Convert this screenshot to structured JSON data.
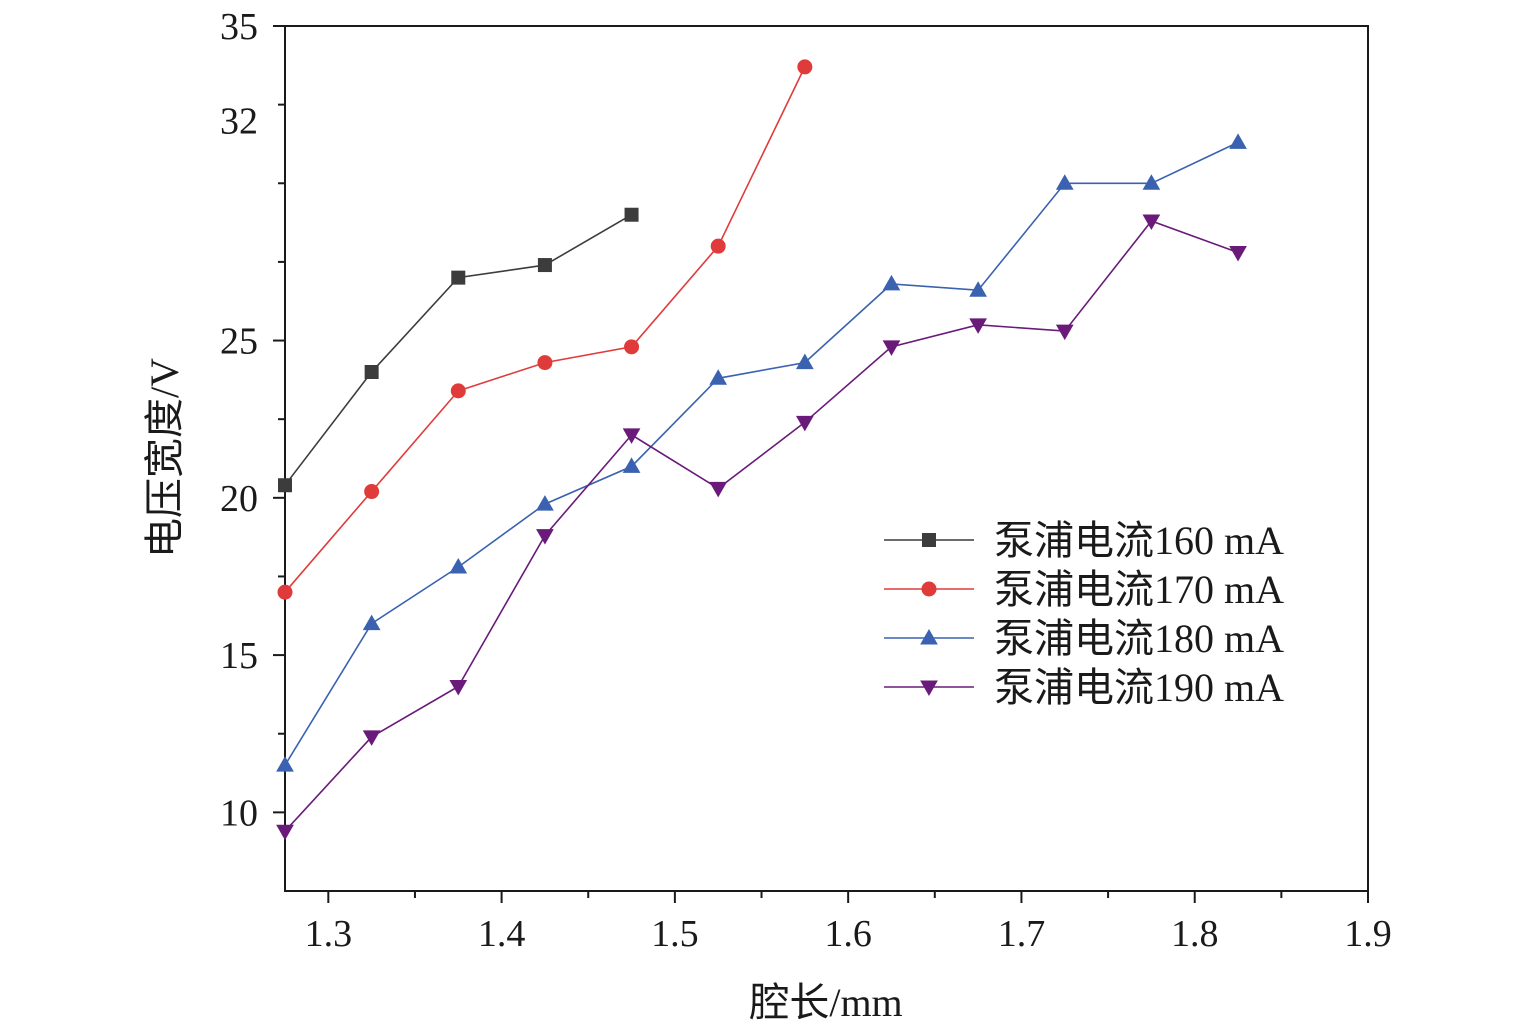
{
  "chart_data": {
    "type": "line",
    "title": "",
    "xlabel": "腔长/mm",
    "ylabel": "电压宽度/V",
    "xlim": [
      1.275,
      1.9
    ],
    "ylim": [
      7.5,
      35
    ],
    "x_ticks": [
      "1.3",
      "1.4",
      "1.5",
      "1.6",
      "1.7",
      "1.8",
      "1.9"
    ],
    "y_ticks": [
      "10",
      "15",
      "20",
      "25",
      "32",
      "35"
    ],
    "legend_position": "right-middle",
    "grid": false,
    "series": [
      {
        "name": "泵浦电流160 mA",
        "color": "#3c3c3c",
        "marker": "square",
        "x": [
          1.275,
          1.325,
          1.375,
          1.425,
          1.475
        ],
        "y": [
          20.4,
          24.0,
          27.0,
          27.4,
          29.0
        ]
      },
      {
        "name": "泵浦电流170 mA",
        "color": "#e03b3b",
        "marker": "circle",
        "x": [
          1.275,
          1.325,
          1.375,
          1.425,
          1.475,
          1.525,
          1.575
        ],
        "y": [
          17.0,
          20.2,
          23.4,
          24.3,
          24.8,
          28.0,
          33.7
        ]
      },
      {
        "name": "泵浦电流180 mA",
        "color": "#3a62b0",
        "marker": "triangle-up",
        "x": [
          1.275,
          1.325,
          1.375,
          1.425,
          1.475,
          1.525,
          1.575,
          1.625,
          1.675,
          1.725,
          1.775,
          1.825
        ],
        "y": [
          11.5,
          16.0,
          17.8,
          19.8,
          21.0,
          23.8,
          24.3,
          26.8,
          26.6,
          30.0,
          30.0,
          31.3
        ]
      },
      {
        "name": "泵浦电流190 mA",
        "color": "#6a1b7a",
        "marker": "triangle-down",
        "x": [
          1.275,
          1.325,
          1.375,
          1.425,
          1.475,
          1.525,
          1.575,
          1.625,
          1.675,
          1.725,
          1.775,
          1.825
        ],
        "y": [
          9.4,
          12.4,
          14.0,
          18.8,
          22.0,
          20.3,
          22.4,
          24.8,
          25.5,
          25.3,
          28.8,
          27.8
        ]
      }
    ]
  }
}
